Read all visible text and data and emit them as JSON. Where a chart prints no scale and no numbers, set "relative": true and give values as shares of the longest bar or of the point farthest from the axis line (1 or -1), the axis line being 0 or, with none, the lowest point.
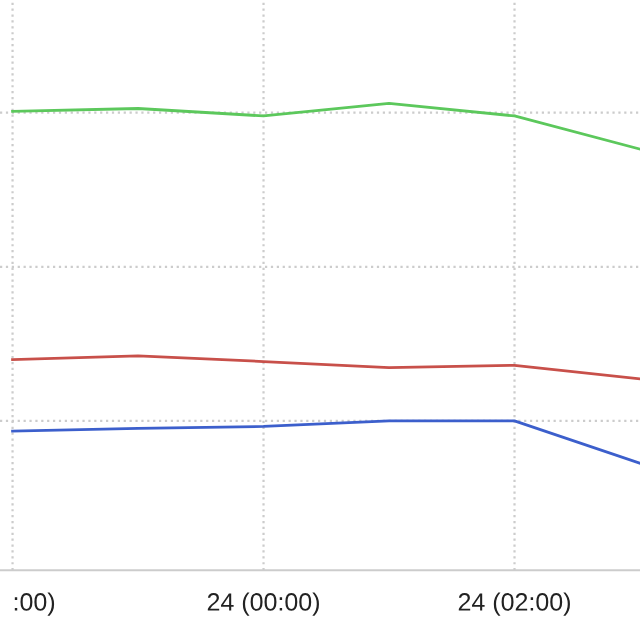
{
  "chart_data": {
    "type": "line",
    "relative": true,
    "categories": [
      ":00)",
      null,
      "24 (00:00)",
      null,
      "24 (02:00)",
      null
    ],
    "series": [
      {
        "color": "#5cc85c",
        "values": [
          0.983,
          0.989,
          0.973,
          1,
          0.973,
          0.902
        ]
      },
      {
        "color": "#c8504a",
        "values": [
          0.451,
          0.459,
          0.447,
          0.434,
          0.439,
          0.41
        ]
      },
      {
        "color": "#3c5fcc",
        "values": [
          0.298,
          0.304,
          0.308,
          0.32,
          0.32,
          0.229
        ]
      }
    ],
    "grid": true,
    "legend": false,
    "marker": "none",
    "line_style": "solid",
    "tick_labels": "x"
  }
}
